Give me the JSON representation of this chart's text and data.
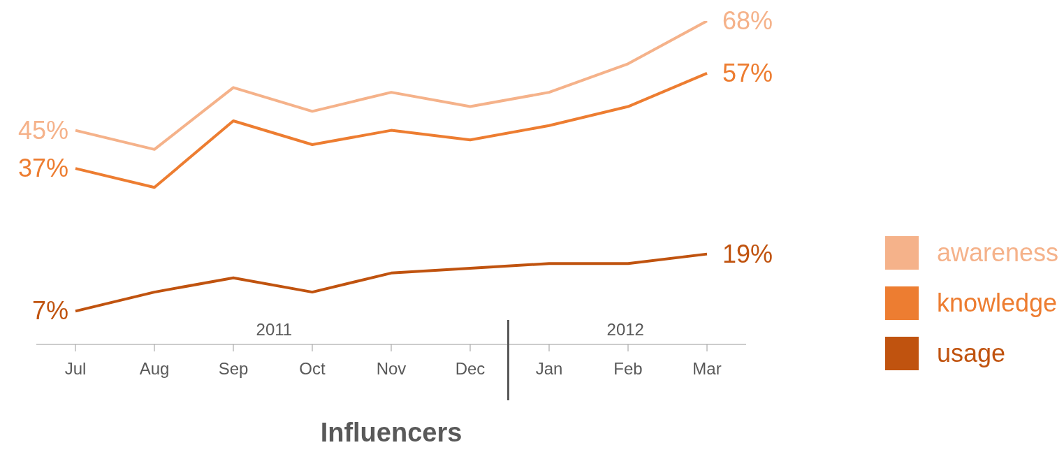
{
  "chart_data": {
    "type": "line",
    "title": "Influencers",
    "categories": [
      "Jul",
      "Aug",
      "Sep",
      "Oct",
      "Nov",
      "Dec",
      "Jan",
      "Feb",
      "Mar"
    ],
    "series": [
      {
        "name": "awareness",
        "color": "#f5b28a",
        "values": [
          45,
          41,
          54,
          49,
          53,
          50,
          53,
          59,
          68
        ],
        "value_labels": [
          "45%",
          null,
          null,
          null,
          null,
          null,
          null,
          null,
          "68%"
        ]
      },
      {
        "name": "knowledge",
        "color": "#ed7d31",
        "values": [
          37,
          33,
          47,
          42,
          45,
          43,
          46,
          50,
          57
        ],
        "value_labels": [
          "37%",
          null,
          null,
          null,
          null,
          null,
          null,
          null,
          "57%"
        ]
      },
      {
        "name": "usage",
        "color": "#c0530f",
        "values": [
          7,
          11,
          14,
          11,
          15,
          16,
          17,
          17,
          19
        ],
        "value_labels": [
          "7%",
          null,
          null,
          null,
          null,
          null,
          null,
          null,
          "19%"
        ]
      }
    ],
    "annotations": [
      "2011",
      "2012"
    ],
    "legend": "right",
    "marker": "none",
    "line_style": "solid"
  }
}
